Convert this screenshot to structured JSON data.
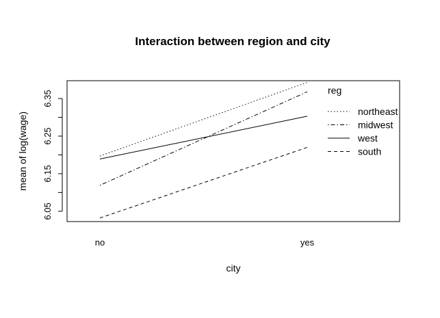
{
  "chart_data": {
    "type": "line",
    "title": "Interaction between region and city",
    "xlabel": "city",
    "ylabel": "mean of  log(wage)",
    "categories": [
      "no",
      "yes"
    ],
    "ylim": [
      6.0225,
      6.3975
    ],
    "yticks": [
      "6.05",
      "6.15",
      "6.25",
      "6.35"
    ],
    "ytick_values": [
      6.05,
      6.15,
      6.25,
      6.35
    ],
    "grid": false,
    "legend": {
      "title": "reg",
      "placement": "top-right",
      "entries": [
        "northeast",
        "midwest",
        "west",
        "south"
      ]
    },
    "series": [
      {
        "name": "northeast",
        "values": [
          6.197,
          6.393
        ],
        "linestyle": "dotted"
      },
      {
        "name": "midwest",
        "values": [
          6.119,
          6.368
        ],
        "linestyle": "dotdash"
      },
      {
        "name": "west",
        "values": [
          6.189,
          6.303
        ],
        "linestyle": "solid"
      },
      {
        "name": "south",
        "values": [
          6.032,
          6.22
        ],
        "linestyle": "dashed"
      }
    ],
    "line_color": "#000000"
  }
}
